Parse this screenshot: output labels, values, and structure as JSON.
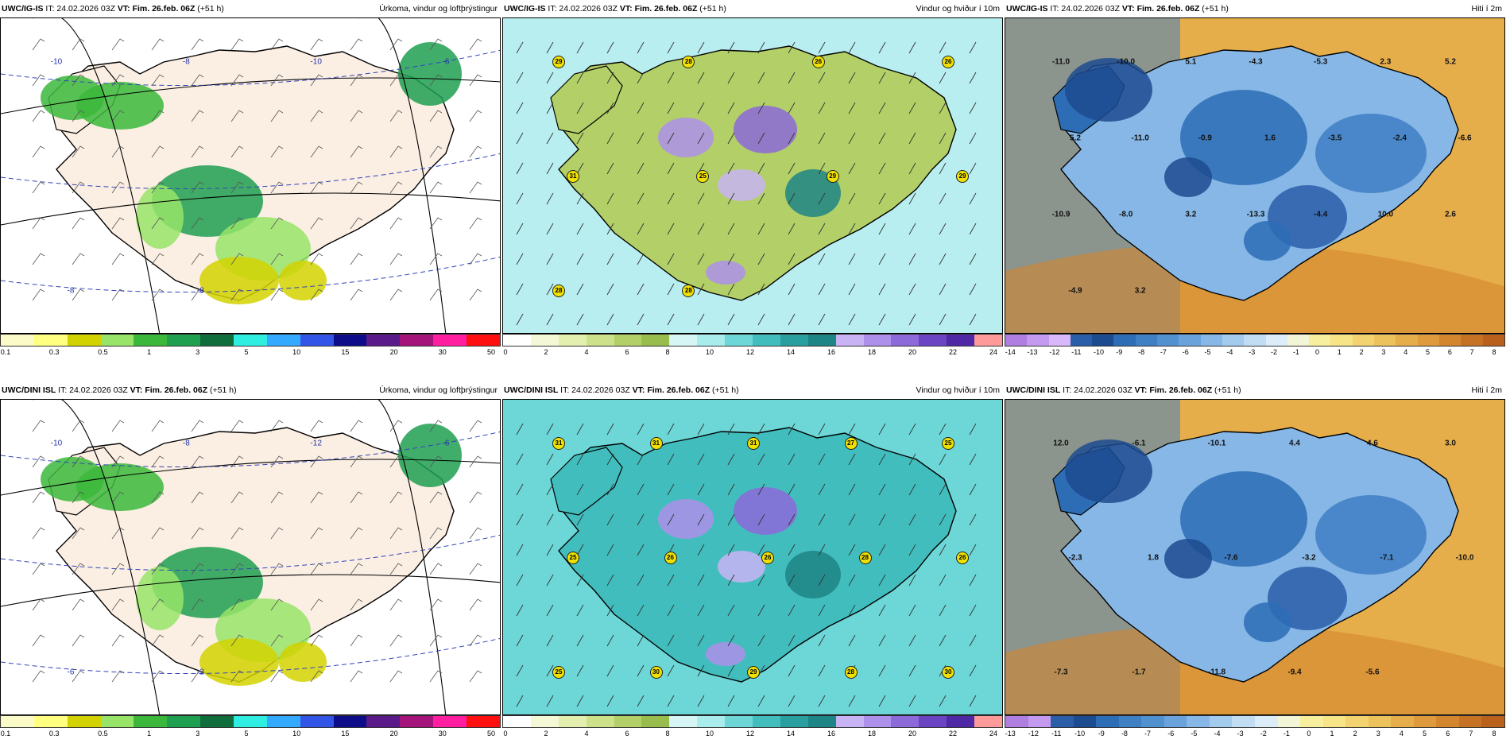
{
  "panels": [
    {
      "model": "UWC/IG-IS",
      "it": "IT: 24.02.2026 03Z",
      "vt_label": "VT:",
      "vt": "Fim. 26.feb. 06Z",
      "lead": "(+51 h)",
      "title": "Úrkoma, vindur og loftþrýstingur",
      "type": "precip",
      "ticks": [
        "0.1",
        "0.3",
        "0.5",
        "1",
        "3",
        "5",
        "10",
        "15",
        "20",
        "30",
        "50"
      ],
      "colors": [
        "#fbfbc8",
        "#ffff80",
        "#d2d200",
        "#98e468",
        "#3bb83b",
        "#1f9f50",
        "#0f6e3c",
        "#2eeee2",
        "#33aaff",
        "#3255e8",
        "#0d0d8a",
        "#5a1a8a",
        "#a5147a",
        "#ff1ea0",
        "#ff1010"
      ],
      "labels": [
        {
          "t": "-10"
        },
        {
          "t": "-8"
        },
        {
          "t": "-10"
        },
        {
          "t": "-6"
        },
        {
          "t": "-8"
        },
        {
          "t": "-8"
        }
      ]
    },
    {
      "model": "UWC/IG-IS",
      "it": "IT: 24.02.2026 03Z",
      "vt_label": "VT:",
      "vt": "Fim. 26.feb. 06Z",
      "lead": "(+51 h)",
      "title": "Vindur og hviður í 10m",
      "type": "wind",
      "ticks": [
        "0",
        "2",
        "4",
        "6",
        "8",
        "10",
        "12",
        "14",
        "16",
        "18",
        "20",
        "22",
        "24"
      ],
      "colors": [
        "#ffffff",
        "#f4f8d6",
        "#e3efae",
        "#cde08a",
        "#b3cf68",
        "#98bd4c",
        "#d6f6f6",
        "#a8ecec",
        "#6dd6d6",
        "#42bdbd",
        "#2a9f9f",
        "#1d8585",
        "#c8b4f4",
        "#ad90ea",
        "#8c6ad9",
        "#6b44c4",
        "#4f28a6",
        "#ff9a9a"
      ],
      "maxima": [
        "29",
        "28",
        "26",
        "26",
        "31",
        "25",
        "29",
        "29",
        "28",
        "28"
      ]
    },
    {
      "model": "UWC/IG-IS",
      "it": "IT: 24.02.2026 03Z",
      "vt_label": "VT:",
      "vt": "Fim. 26.feb. 06Z",
      "lead": "(+51 h)",
      "title": "Hiti í 2m",
      "type": "temp",
      "ticks": [
        "-14",
        "-13",
        "-12",
        "-11",
        "-10",
        "-9",
        "-8",
        "-7",
        "-6",
        "-5",
        "-4",
        "-3",
        "-2",
        "-1",
        "0",
        "1",
        "2",
        "3",
        "4",
        "5",
        "6",
        "7",
        "8"
      ],
      "colors": [
        "#b07de0",
        "#c49af0",
        "#d8b8fa",
        "#2a5ea8",
        "#1d4b8f",
        "#2d6db5",
        "#3f7fc4",
        "#5291d0",
        "#6aa3dc",
        "#86b7e6",
        "#a3cbee",
        "#c1ddf4",
        "#dcecf8",
        "#f2f5d6",
        "#f7ef9e",
        "#f7e487",
        "#f2d271",
        "#ecc25c",
        "#e6ae4a",
        "#de9a3c",
        "#d4862f",
        "#c67224",
        "#b8601c"
      ],
      "labels": [
        "-11.0",
        "-10.0",
        "5.1",
        "-4.3",
        "-5.3",
        "2.3",
        "5.2",
        "5.2",
        "-11.0",
        "-0.9",
        "1.6",
        "-3.5",
        "-2.4",
        "-6.6",
        "-10.9",
        "-8.0",
        "3.2",
        "-13.3",
        "-4.4",
        "10.0",
        "2.6",
        "-4.9",
        "3.2"
      ]
    },
    {
      "model": "UWC/DINI ISL",
      "it": "IT: 24.02.2026 03Z",
      "vt_label": "VT:",
      "vt": "Fim. 26.feb. 06Z",
      "lead": "(+51 h)",
      "title": "Úrkoma, vindur og loftþrýstingur",
      "type": "precip",
      "ticks": [
        "0.1",
        "0.3",
        "0.5",
        "1",
        "3",
        "5",
        "10",
        "15",
        "20",
        "30",
        "50"
      ],
      "colors": [
        "#fbfbc8",
        "#ffff80",
        "#d2d200",
        "#98e468",
        "#3bb83b",
        "#1f9f50",
        "#0f6e3c",
        "#2eeee2",
        "#33aaff",
        "#3255e8",
        "#0d0d8a",
        "#5a1a8a",
        "#a5147a",
        "#ff1ea0",
        "#ff1010"
      ],
      "labels": [
        {
          "t": "-10"
        },
        {
          "t": "-8"
        },
        {
          "t": "-12"
        },
        {
          "t": "-6"
        },
        {
          "t": "-6"
        },
        {
          "t": "-2"
        }
      ]
    },
    {
      "model": "UWC/DINI ISL",
      "it": "IT: 24.02.2026 03Z",
      "vt_label": "VT:",
      "vt": "Fim. 26.feb. 06Z",
      "lead": "(+51 h)",
      "title": "Vindur og hviður í 10m",
      "type": "wind",
      "ticks": [
        "0",
        "2",
        "4",
        "6",
        "8",
        "10",
        "12",
        "14",
        "16",
        "18",
        "20",
        "22",
        "24"
      ],
      "colors": [
        "#ffffff",
        "#f4f8d6",
        "#e3efae",
        "#cde08a",
        "#b3cf68",
        "#98bd4c",
        "#d6f6f6",
        "#a8ecec",
        "#6dd6d6",
        "#42bdbd",
        "#2a9f9f",
        "#1d8585",
        "#c8b4f4",
        "#ad90ea",
        "#8c6ad9",
        "#6b44c4",
        "#4f28a6",
        "#ff9a9a"
      ],
      "maxima": [
        "31",
        "31",
        "31",
        "27",
        "25",
        "25",
        "26",
        "26",
        "28",
        "26",
        "25",
        "30",
        "29",
        "28",
        "30"
      ]
    },
    {
      "model": "UWC/DINI ISL",
      "it": "IT: 24.02.2026 03Z",
      "vt_label": "VT:",
      "vt": "Fim. 26.feb. 06Z",
      "lead": "(+51 h)",
      "title": "Hiti í 2m",
      "type": "temp",
      "ticks": [
        "-13",
        "-12",
        "-11",
        "-10",
        "-9",
        "-8",
        "-7",
        "-6",
        "-5",
        "-4",
        "-3",
        "-2",
        "-1",
        "0",
        "1",
        "2",
        "3",
        "4",
        "5",
        "6",
        "7",
        "8"
      ],
      "colors": [
        "#b07de0",
        "#c49af0",
        "#2a5ea8",
        "#1d4b8f",
        "#2d6db5",
        "#3f7fc4",
        "#5291d0",
        "#6aa3dc",
        "#86b7e6",
        "#a3cbee",
        "#c1ddf4",
        "#dcecf8",
        "#f2f5d6",
        "#f7ef9e",
        "#f7e487",
        "#f2d271",
        "#ecc25c",
        "#e6ae4a",
        "#de9a3c",
        "#d4862f",
        "#c67224",
        "#b8601c"
      ],
      "labels": [
        "12.0",
        "-6.1",
        "-10.1",
        "4.4",
        "4.6",
        "3.0",
        "-2.3",
        "1.8",
        "-7.6",
        "-3.2",
        "-7.1",
        "-10.0",
        "-7.3",
        "-1.7",
        "-11.8",
        "-9.4",
        "-5.6"
      ]
    }
  ]
}
